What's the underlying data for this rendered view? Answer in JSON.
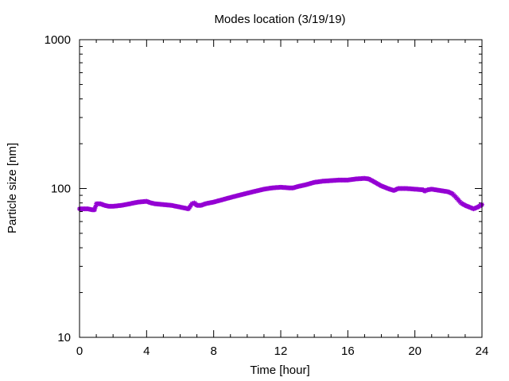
{
  "chart_data": {
    "type": "scatter",
    "title": "Modes location (3/19/19)",
    "xlabel": "Time [hour]",
    "ylabel": "Particle size [nm]",
    "xlim": [
      0,
      24
    ],
    "ylim": [
      10,
      1000
    ],
    "yscale": "log",
    "xticks": [
      0,
      4,
      8,
      12,
      16,
      20,
      24
    ],
    "yticks": [
      10,
      100,
      1000
    ],
    "grid": false,
    "legend": "none",
    "series": [
      {
        "color": "#9400d3",
        "marker": "asterisk",
        "x": [
          0.0,
          0.25,
          0.5,
          0.75,
          0.9,
          1.0,
          1.25,
          1.5,
          1.75,
          2.0,
          2.5,
          3.0,
          3.5,
          4.0,
          4.25,
          4.5,
          5.0,
          5.5,
          6.0,
          6.25,
          6.5,
          6.7,
          6.85,
          7.0,
          7.25,
          7.5,
          8.0,
          8.5,
          9.0,
          9.5,
          10.0,
          10.5,
          11.0,
          11.5,
          12.0,
          12.5,
          12.75,
          13.0,
          13.5,
          14.0,
          14.5,
          15.0,
          15.5,
          16.0,
          16.5,
          17.0,
          17.25,
          17.5,
          17.75,
          18.0,
          18.5,
          18.75,
          19.0,
          19.5,
          20.0,
          20.5,
          20.6,
          20.75,
          21.0,
          21.5,
          22.0,
          22.25,
          22.5,
          22.75,
          23.0,
          23.25,
          23.5,
          23.75,
          24.0
        ],
        "y": [
          73,
          73,
          73,
          72,
          72,
          79,
          79,
          77,
          76,
          76,
          77,
          79,
          81,
          82,
          80,
          79,
          78,
          77,
          75,
          74,
          73,
          79,
          80,
          77,
          77,
          79,
          81,
          84,
          87,
          90,
          93,
          96,
          99,
          101,
          102,
          101,
          101,
          103,
          106,
          110,
          112,
          113,
          114,
          114,
          116,
          117,
          116,
          112,
          108,
          104,
          99,
          97,
          100,
          100,
          99,
          98,
          96,
          98,
          99,
          97,
          95,
          92,
          86,
          80,
          77,
          75,
          73,
          75,
          78
        ]
      }
    ]
  }
}
